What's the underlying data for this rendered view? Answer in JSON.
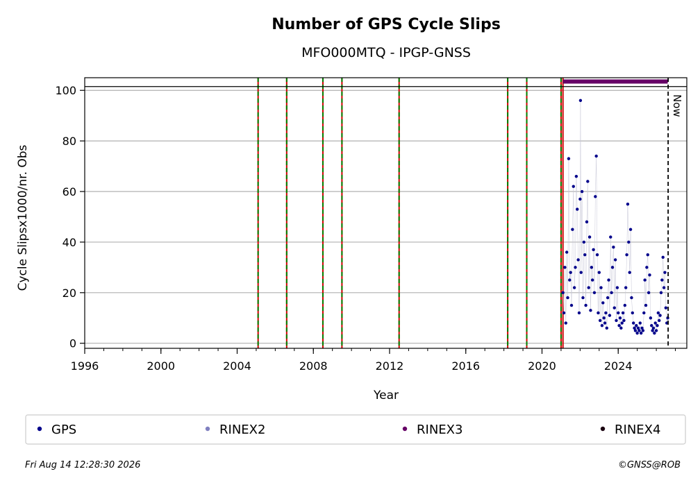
{
  "chart_data": {
    "type": "scatter",
    "title": "Number of GPS Cycle Slips",
    "subtitle": "MFO000MTQ - IPGP-GNSS",
    "xlabel": "Year",
    "ylabel": "Cycle Slipsx1000/nr. Obs",
    "xlim": [
      1996,
      2027.6
    ],
    "ylim": [
      -2,
      105
    ],
    "x_ticks": [
      1996,
      2000,
      2004,
      2008,
      2012,
      2016,
      2020,
      2024
    ],
    "y_ticks": [
      0,
      20,
      40,
      60,
      80,
      100
    ],
    "grid": "horizontal",
    "reference_line_y": 101.5,
    "event_lines_green_red": [
      2005.1,
      2006.6,
      2008.5,
      2009.5,
      2012.5,
      2018.2,
      2019.2,
      2021.0
    ],
    "data_start_line": {
      "x": 2021.1,
      "color": "#cc0000"
    },
    "rinex3_bar": {
      "x_start": 2021.1,
      "x_end": 2026.6,
      "y": 103.5,
      "color": "#660066"
    },
    "now_line": {
      "x": 2026.62,
      "label": "Now"
    },
    "series": [
      {
        "name": "GPS",
        "color": "#00008b",
        "points": [
          [
            2021.1,
            20
          ],
          [
            2021.15,
            12
          ],
          [
            2021.2,
            30
          ],
          [
            2021.25,
            8
          ],
          [
            2021.3,
            36
          ],
          [
            2021.35,
            18
          ],
          [
            2021.4,
            73
          ],
          [
            2021.45,
            25
          ],
          [
            2021.5,
            28
          ],
          [
            2021.55,
            15
          ],
          [
            2021.6,
            45
          ],
          [
            2021.65,
            62
          ],
          [
            2021.7,
            22
          ],
          [
            2021.75,
            30
          ],
          [
            2021.8,
            66
          ],
          [
            2021.85,
            53
          ],
          [
            2021.9,
            33
          ],
          [
            2021.95,
            12
          ],
          [
            2022.0,
            57
          ],
          [
            2022.02,
            96
          ],
          [
            2022.05,
            28
          ],
          [
            2022.1,
            60
          ],
          [
            2022.15,
            18
          ],
          [
            2022.2,
            40
          ],
          [
            2022.25,
            35
          ],
          [
            2022.3,
            15
          ],
          [
            2022.35,
            48
          ],
          [
            2022.4,
            64
          ],
          [
            2022.45,
            22
          ],
          [
            2022.5,
            42
          ],
          [
            2022.55,
            13
          ],
          [
            2022.6,
            30
          ],
          [
            2022.65,
            25
          ],
          [
            2022.7,
            37
          ],
          [
            2022.75,
            20
          ],
          [
            2022.8,
            58
          ],
          [
            2022.85,
            74
          ],
          [
            2022.9,
            35
          ],
          [
            2022.95,
            12
          ],
          [
            2023.0,
            28
          ],
          [
            2023.05,
            9
          ],
          [
            2023.1,
            22
          ],
          [
            2023.15,
            7
          ],
          [
            2023.2,
            16
          ],
          [
            2023.25,
            10
          ],
          [
            2023.3,
            8
          ],
          [
            2023.35,
            12
          ],
          [
            2023.4,
            6
          ],
          [
            2023.45,
            18
          ],
          [
            2023.5,
            25
          ],
          [
            2023.55,
            11
          ],
          [
            2023.6,
            42
          ],
          [
            2023.65,
            20
          ],
          [
            2023.7,
            30
          ],
          [
            2023.75,
            38
          ],
          [
            2023.8,
            14
          ],
          [
            2023.85,
            33
          ],
          [
            2023.9,
            9
          ],
          [
            2023.95,
            22
          ],
          [
            2024.0,
            12
          ],
          [
            2024.05,
            7
          ],
          [
            2024.1,
            10
          ],
          [
            2024.15,
            6
          ],
          [
            2024.2,
            8
          ],
          [
            2024.25,
            12
          ],
          [
            2024.3,
            9
          ],
          [
            2024.35,
            15
          ],
          [
            2024.4,
            22
          ],
          [
            2024.45,
            35
          ],
          [
            2024.5,
            55
          ],
          [
            2024.55,
            40
          ],
          [
            2024.6,
            28
          ],
          [
            2024.65,
            45
          ],
          [
            2024.7,
            18
          ],
          [
            2024.75,
            12
          ],
          [
            2024.8,
            8
          ],
          [
            2024.85,
            6
          ],
          [
            2024.9,
            5
          ],
          [
            2024.95,
            7
          ],
          [
            2025.0,
            4
          ],
          [
            2025.05,
            6
          ],
          [
            2025.1,
            5
          ],
          [
            2025.15,
            8
          ],
          [
            2025.2,
            4
          ],
          [
            2025.25,
            6
          ],
          [
            2025.3,
            5
          ],
          [
            2025.35,
            12
          ],
          [
            2025.4,
            25
          ],
          [
            2025.45,
            15
          ],
          [
            2025.5,
            30
          ],
          [
            2025.55,
            35
          ],
          [
            2025.6,
            20
          ],
          [
            2025.65,
            27
          ],
          [
            2025.7,
            10
          ],
          [
            2025.75,
            7
          ],
          [
            2025.8,
            5
          ],
          [
            2025.85,
            6
          ],
          [
            2025.9,
            4
          ],
          [
            2025.95,
            8
          ],
          [
            2026.0,
            5
          ],
          [
            2026.05,
            7
          ],
          [
            2026.1,
            12
          ],
          [
            2026.15,
            9
          ],
          [
            2026.2,
            11
          ],
          [
            2026.25,
            20
          ],
          [
            2026.3,
            25
          ],
          [
            2026.35,
            34
          ],
          [
            2026.4,
            22
          ],
          [
            2026.45,
            28
          ],
          [
            2026.5,
            14
          ],
          [
            2026.55,
            8
          ],
          [
            2026.6,
            10
          ]
        ]
      }
    ],
    "legend": [
      {
        "label": "GPS",
        "color": "#00008b"
      },
      {
        "label": "RINEX2",
        "color": "#8080c0"
      },
      {
        "label": "RINEX3",
        "color": "#660066"
      },
      {
        "label": "RINEX4",
        "color": "#1a0010"
      }
    ]
  },
  "footer": {
    "timestamp": "Fri Aug 14 12:28:30 2026",
    "credit": "©GNSS@ROB"
  }
}
